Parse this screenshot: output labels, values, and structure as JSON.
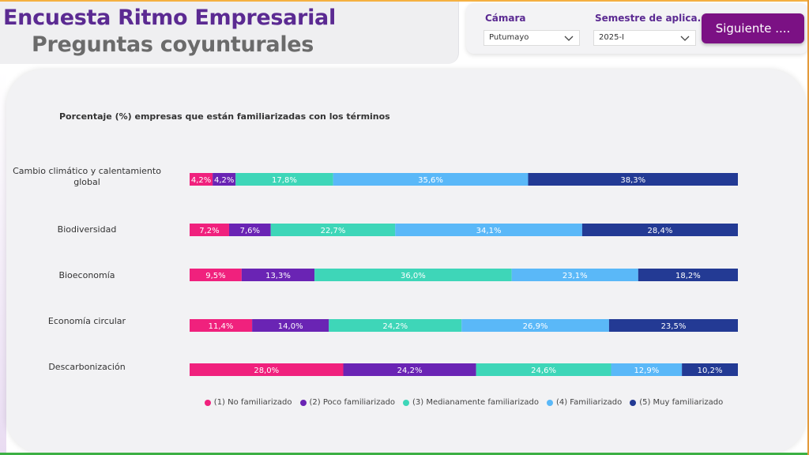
{
  "header": {
    "title": "Encuesta Ritmo Empresarial",
    "subtitle": "Preguntas coyunturales"
  },
  "filters": {
    "camara": {
      "label": "Cámara",
      "value": "Putumayo"
    },
    "semestre": {
      "label": "Semestre de aplica...",
      "value": "2025-I"
    }
  },
  "next_button": {
    "label": "Siguiente ...."
  },
  "chart_data": {
    "type": "bar",
    "orientation": "horizontal",
    "stacked": true,
    "percent": true,
    "title": "Porcentaje (%) empresas que están familiarizadas con los términos",
    "categories": [
      "Cambio climático y calentamiento global",
      "Biodiversidad",
      "Bioeconomía",
      "Economía circular",
      "Descarbonización"
    ],
    "series": [
      {
        "name": "(1) No familiarizado",
        "color": "#f0217d",
        "values": [
          4.2,
          7.2,
          9.5,
          11.4,
          28.0
        ],
        "labels": [
          "4,2%",
          "7,2%",
          "9,5%",
          "11,4%",
          "28,0%"
        ]
      },
      {
        "name": "(2) Poco familiarizado",
        "color": "#6a24b4",
        "values": [
          4.2,
          7.6,
          13.3,
          14.0,
          24.2
        ],
        "labels": [
          "4,2%",
          "7,6%",
          "13,3%",
          "14,0%",
          "24,2%"
        ]
      },
      {
        "name": "(3) Medianamente familiarizado",
        "color": "#3ed6b8",
        "values": [
          17.8,
          22.7,
          36.0,
          24.2,
          24.6
        ],
        "labels": [
          "17,8%",
          "22,7%",
          "36,0%",
          "24,2%",
          "24,6%"
        ]
      },
      {
        "name": "(4) Familiarizado",
        "color": "#5ab8f8",
        "values": [
          35.6,
          34.1,
          23.1,
          26.9,
          12.9
        ],
        "labels": [
          "35,6%",
          "34,1%",
          "23,1%",
          "26,9%",
          "12,9%"
        ]
      },
      {
        "name": "(5) Muy familiarizado",
        "color": "#233a94",
        "values": [
          38.3,
          28.4,
          18.2,
          23.5,
          10.2
        ],
        "labels": [
          "38,3%",
          "28,4%",
          "18,2%",
          "23,5%",
          "10,2%"
        ]
      }
    ],
    "legend_position": "bottom",
    "grid": false
  }
}
